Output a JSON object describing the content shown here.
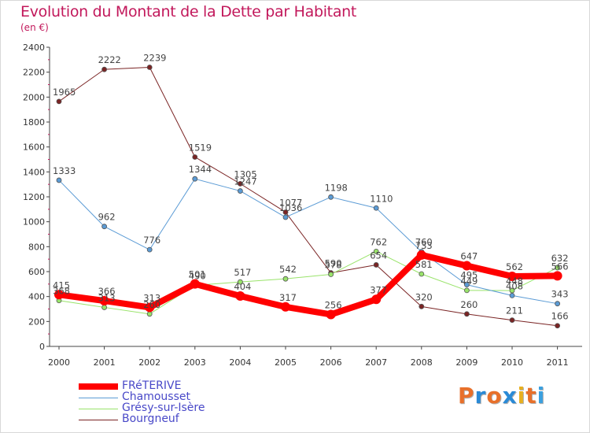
{
  "title": "Evolution du Montant de la Dette par Habitant",
  "subtitle": "(en €)",
  "brand": {
    "text": "Proxiti",
    "colors": [
      "#e8702a",
      "#2a8ad6",
      "#e8702a",
      "#2a8ad6",
      "#e8b020",
      "#e8702a",
      "#3aa0e0"
    ]
  },
  "chart_data": {
    "type": "line",
    "x": [
      "2000",
      "2001",
      "2002",
      "2003",
      "2004",
      "2005",
      "2006",
      "2007",
      "2008",
      "2009",
      "2010",
      "2011"
    ],
    "ylim": [
      0,
      2400
    ],
    "yticks": [
      0,
      200,
      400,
      600,
      800,
      1000,
      1200,
      1400,
      1600,
      1800,
      2000,
      2200,
      2400
    ],
    "xlabel": "",
    "ylabel": "",
    "grid": false,
    "legend_position": "bottom-left",
    "series": [
      {
        "name": "FRéTERIVE",
        "color": "#ff0000",
        "values": [
          415,
          366,
          313,
          501,
          404,
          317,
          256,
          377,
          733,
          647,
          562,
          566
        ]
      },
      {
        "name": "Chamousset",
        "color": "#5b9bd5",
        "values": [
          1333,
          962,
          776,
          1344,
          1247,
          1036,
          1198,
          1110,
          760,
          495,
          408,
          343
        ]
      },
      {
        "name": "Grésy-sur-Isère",
        "color": "#99e36a",
        "values": [
          368,
          313,
          260,
          490,
          517,
          542,
          578,
          762,
          581,
          449,
          448,
          632
        ]
      },
      {
        "name": "Bourgneuf",
        "color": "#7a2424",
        "values": [
          1965,
          2222,
          2239,
          1519,
          1305,
          1077,
          590,
          654,
          320,
          260,
          211,
          166
        ]
      }
    ]
  }
}
